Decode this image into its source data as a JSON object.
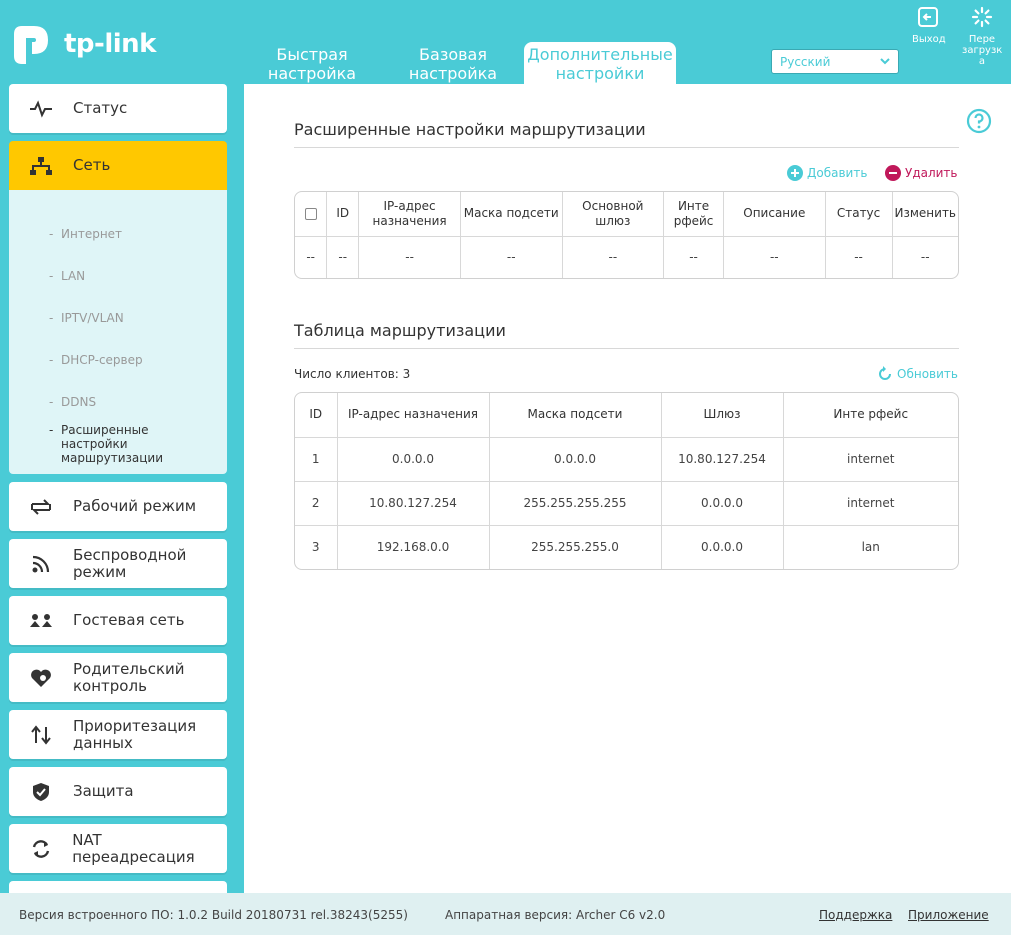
{
  "brand": {
    "name": "tp-link"
  },
  "header": {
    "tabs": [
      {
        "label": "Быстрая настройка",
        "active": false
      },
      {
        "label": "Базовая настройка",
        "active": false
      },
      {
        "label": "Дополнительные настройки",
        "active": true
      }
    ],
    "language": {
      "selected": "Русский"
    },
    "logout_label": "Выход",
    "reboot_label": "Пере загрузк а"
  },
  "sidebar": {
    "items": [
      {
        "label": "Статус",
        "icon": "pulse-icon"
      },
      {
        "label": "Сеть",
        "icon": "network-icon",
        "active": true
      },
      {
        "label": "Рабочий режим",
        "icon": "mode-switch-icon"
      },
      {
        "label": "Беспроводной режим",
        "icon": "wireless-icon"
      },
      {
        "label": "Гостевая сеть",
        "icon": "guest-icon"
      },
      {
        "label": "Родительский контроль",
        "icon": "heart-icon"
      },
      {
        "label": "Приоритезация данных",
        "icon": "priority-arrows-icon"
      },
      {
        "label": "Защита",
        "icon": "shield-icon"
      },
      {
        "label": "NAT переадресация",
        "icon": "nat-icon"
      }
    ],
    "subitems": [
      {
        "label": "Интернет"
      },
      {
        "label": "LAN"
      },
      {
        "label": "IPTV/VLAN"
      },
      {
        "label": "DHCP-сервер"
      },
      {
        "label": "DDNS"
      },
      {
        "label": "Расширенные настройки маршрутизации",
        "active": true
      }
    ]
  },
  "advanced": {
    "title": "Расширенные настройки маршрутизации",
    "add_label": "Добавить",
    "delete_label": "Удалить",
    "columns": [
      "ID",
      "IP-адрес назначения",
      "Маска подсети",
      "Основной шлюз",
      "Инте рфейс",
      "Описание",
      "Статус",
      "Изменить"
    ],
    "empty_row": [
      "--",
      "--",
      "--",
      "--",
      "--",
      "--",
      "--",
      "--",
      "--"
    ]
  },
  "routing": {
    "title": "Таблица маршрутизации",
    "count_label": "Число клиентов: 3",
    "refresh_label": "Обновить",
    "columns": [
      "ID",
      "IP-адрес назначения",
      "Маска подсети",
      "Шлюз",
      "Инте рфейс"
    ],
    "rows": [
      [
        "1",
        "0.0.0.0",
        "0.0.0.0",
        "10.80.127.254",
        "internet"
      ],
      [
        "2",
        "10.80.127.254",
        "255.255.255.255",
        "0.0.0.0",
        "internet"
      ],
      [
        "3",
        "192.168.0.0",
        "255.255.255.0",
        "0.0.0.0",
        "lan"
      ]
    ]
  },
  "footer": {
    "firmware": "Версия встроенного ПО: 1.0.2 Build 20180731 rel.38243(5255)",
    "hardware": "Аппаратная версия: Archer C6 v2.0",
    "support": "Поддержка",
    "app": "Приложение"
  },
  "colors": {
    "accent": "#4acbd6",
    "active": "#ffc800",
    "delete": "#c0185a"
  }
}
